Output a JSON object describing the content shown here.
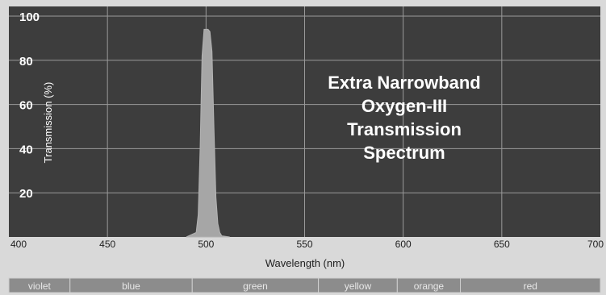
{
  "chart_data": {
    "type": "area",
    "title_lines": [
      "Extra Narrowband",
      "Oxygen-III",
      "Transmission",
      "Spectrum"
    ],
    "xlabel": "Wavelength (nm)",
    "ylabel": "Transmission (%)",
    "xlim": [
      400,
      700
    ],
    "ylim": [
      0,
      100
    ],
    "x_ticks": [
      400,
      450,
      500,
      550,
      600,
      650,
      700
    ],
    "y_ticks": [
      20,
      40,
      60,
      80,
      100
    ],
    "grid": true,
    "series": [
      {
        "x": [
          490,
          495,
          496,
          497,
          498,
          499,
          500,
          501,
          502,
          503,
          504,
          505,
          506,
          507,
          508,
          512
        ],
        "y": [
          0,
          2,
          10,
          40,
          82,
          94,
          94,
          94,
          93,
          84,
          50,
          18,
          6,
          2,
          0.5,
          0
        ]
      }
    ],
    "spectrum_bands": [
      {
        "label": "violet",
        "start": 400,
        "end": 431
      },
      {
        "label": "blue",
        "start": 431,
        "end": 493
      },
      {
        "label": "green",
        "start": 493,
        "end": 557
      },
      {
        "label": "yellow",
        "start": 557,
        "end": 597
      },
      {
        "label": "orange",
        "start": 597,
        "end": 629
      },
      {
        "label": "red",
        "start": 629,
        "end": 700
      }
    ],
    "colors": {
      "plot_background": "#3d3d3d",
      "grid": "#9a9a9a",
      "area_fill": "#a6a6a6",
      "text": "#ffffff",
      "axis_text": "#1e1e1e",
      "page_background": "#d9d9d9",
      "band_background": "#8c8c8c",
      "band_text": "#e8e8e8"
    }
  }
}
